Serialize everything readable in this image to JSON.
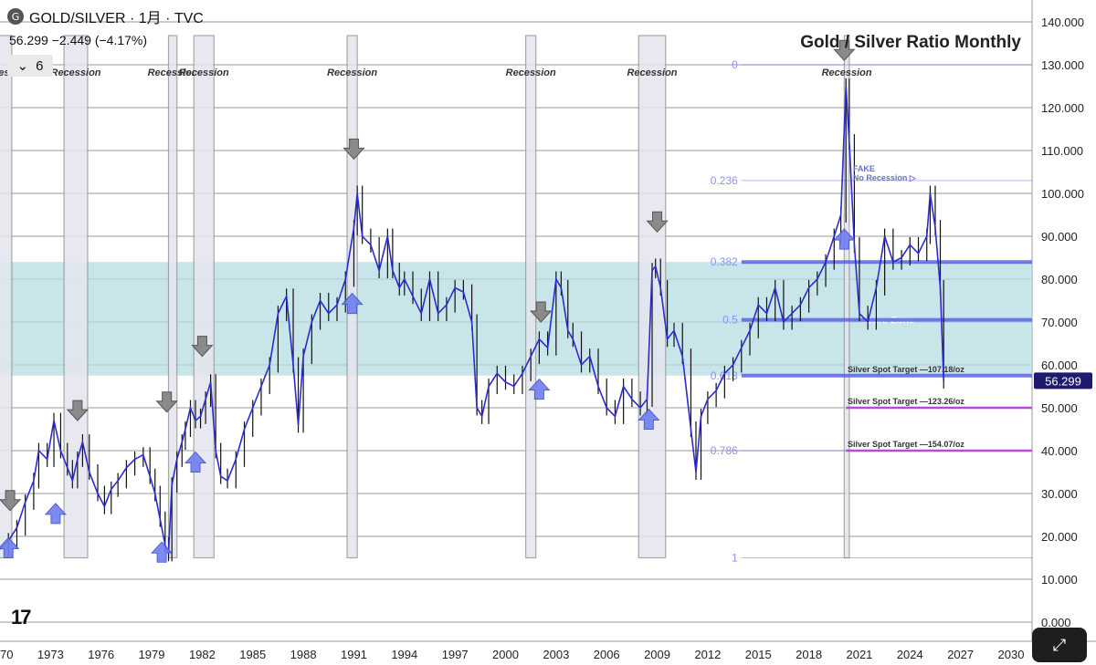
{
  "header": {
    "symbol_icon": "G",
    "title": "GOLD/SILVER · 1月 · TVC",
    "last_price": "56.299",
    "change": "−2.449 (−4.17%)",
    "layers_count": "6"
  },
  "colors": {
    "price_line": "#2b2bd6",
    "candle": "#111111",
    "band_fill": "#b6dde3",
    "recession_fill": "#e4e6ee",
    "fib_line": "#5a64e6",
    "target_line": "#b84ad8",
    "up_arrow": "#6f7ef0",
    "down_arrow": "#8a8a8a",
    "badge_bg": "#1f1a6e"
  },
  "chart_data": {
    "type": "line",
    "title": "Gold / Silver Ratio Monthly",
    "xlabel": "",
    "ylabel": "",
    "x_ticks": [
      "1970",
      "1973",
      "1976",
      "1979",
      "1982",
      "1985",
      "1988",
      "1991",
      "1994",
      "1997",
      "2000",
      "2003",
      "2006",
      "2009",
      "2012",
      "2015",
      "2018",
      "2021",
      "2024",
      "2027",
      "2030"
    ],
    "xlim": [
      1970,
      2030
    ],
    "y_ticks": [
      "0.000",
      "10.000",
      "20.000",
      "30.000",
      "40.000",
      "50.000",
      "60.000",
      "70.000",
      "80.000",
      "90.000",
      "100.000",
      "110.000",
      "120.000",
      "130.000",
      "140.000"
    ],
    "ylim": [
      0,
      140
    ],
    "current_value_label": "56.299",
    "series": [
      {
        "points": [
          [
            1970.0,
            17
          ],
          [
            1970.5,
            19
          ],
          [
            1971.0,
            22
          ],
          [
            1971.5,
            28
          ],
          [
            1972.0,
            33
          ],
          [
            1972.3,
            40
          ],
          [
            1972.8,
            38
          ],
          [
            1973.2,
            47
          ],
          [
            1973.6,
            40
          ],
          [
            1974.0,
            36
          ],
          [
            1974.3,
            33
          ],
          [
            1974.6,
            38
          ],
          [
            1974.9,
            42
          ],
          [
            1975.3,
            35
          ],
          [
            1975.8,
            30
          ],
          [
            1976.2,
            27
          ],
          [
            1976.6,
            31
          ],
          [
            1977.0,
            33
          ],
          [
            1977.5,
            36
          ],
          [
            1978.0,
            38
          ],
          [
            1978.5,
            39
          ],
          [
            1978.9,
            34
          ],
          [
            1979.2,
            30
          ],
          [
            1979.5,
            24
          ],
          [
            1979.8,
            18
          ],
          [
            1980.0,
            16
          ],
          [
            1980.2,
            32
          ],
          [
            1980.5,
            38
          ],
          [
            1980.8,
            42
          ],
          [
            1981.0,
            45
          ],
          [
            1981.3,
            50
          ],
          [
            1981.6,
            47
          ],
          [
            1981.9,
            48
          ],
          [
            1982.2,
            52
          ],
          [
            1982.5,
            56
          ],
          [
            1982.8,
            40
          ],
          [
            1983.1,
            34
          ],
          [
            1983.5,
            33
          ],
          [
            1984.0,
            38
          ],
          [
            1984.5,
            45
          ],
          [
            1985.0,
            50
          ],
          [
            1985.5,
            55
          ],
          [
            1986.0,
            60
          ],
          [
            1986.5,
            72
          ],
          [
            1987.0,
            76
          ],
          [
            1987.4,
            60
          ],
          [
            1987.7,
            46
          ],
          [
            1988.0,
            62
          ],
          [
            1988.5,
            70
          ],
          [
            1989.0,
            75
          ],
          [
            1989.5,
            72
          ],
          [
            1990.0,
            74
          ],
          [
            1990.5,
            80
          ],
          [
            1991.0,
            92
          ],
          [
            1991.2,
            100
          ],
          [
            1991.5,
            90
          ],
          [
            1992.0,
            88
          ],
          [
            1992.5,
            82
          ],
          [
            1993.0,
            90
          ],
          [
            1993.3,
            82
          ],
          [
            1993.7,
            78
          ],
          [
            1994.0,
            80
          ],
          [
            1994.5,
            76
          ],
          [
            1995.0,
            72
          ],
          [
            1995.5,
            80
          ],
          [
            1996.0,
            72
          ],
          [
            1996.5,
            74
          ],
          [
            1997.0,
            78
          ],
          [
            1997.5,
            77
          ],
          [
            1998.0,
            70
          ],
          [
            1998.3,
            50
          ],
          [
            1998.6,
            48
          ],
          [
            1999.0,
            55
          ],
          [
            1999.5,
            58
          ],
          [
            2000.0,
            56
          ],
          [
            2000.5,
            55
          ],
          [
            2001.0,
            58
          ],
          [
            2001.5,
            62
          ],
          [
            2002.0,
            66
          ],
          [
            2002.5,
            64
          ],
          [
            2003.0,
            80
          ],
          [
            2003.3,
            78
          ],
          [
            2003.7,
            68
          ],
          [
            2004.0,
            66
          ],
          [
            2004.5,
            60
          ],
          [
            2005.0,
            62
          ],
          [
            2005.5,
            55
          ],
          [
            2006.0,
            50
          ],
          [
            2006.5,
            48
          ],
          [
            2007.0,
            55
          ],
          [
            2007.5,
            52
          ],
          [
            2008.0,
            50
          ],
          [
            2008.4,
            52
          ],
          [
            2008.7,
            82
          ],
          [
            2008.9,
            83
          ],
          [
            2009.2,
            78
          ],
          [
            2009.6,
            66
          ],
          [
            2010.0,
            68
          ],
          [
            2010.5,
            62
          ],
          [
            2011.0,
            45
          ],
          [
            2011.3,
            35
          ],
          [
            2011.6,
            48
          ],
          [
            2012.0,
            52
          ],
          [
            2012.5,
            54
          ],
          [
            2013.0,
            58
          ],
          [
            2013.5,
            60
          ],
          [
            2014.0,
            64
          ],
          [
            2014.5,
            68
          ],
          [
            2015.0,
            74
          ],
          [
            2015.5,
            72
          ],
          [
            2016.0,
            78
          ],
          [
            2016.5,
            70
          ],
          [
            2017.0,
            72
          ],
          [
            2017.5,
            74
          ],
          [
            2018.0,
            78
          ],
          [
            2018.5,
            80
          ],
          [
            2019.0,
            84
          ],
          [
            2019.5,
            90
          ],
          [
            2019.9,
            95
          ],
          [
            2020.2,
            125
          ],
          [
            2020.4,
            112
          ],
          [
            2020.7,
            88
          ],
          [
            2021.0,
            72
          ],
          [
            2021.5,
            70
          ],
          [
            2022.0,
            78
          ],
          [
            2022.5,
            90
          ],
          [
            2023.0,
            84
          ],
          [
            2023.5,
            85
          ],
          [
            2024.0,
            88
          ],
          [
            2024.5,
            86
          ],
          [
            2025.0,
            90
          ],
          [
            2025.2,
            100
          ],
          [
            2025.5,
            92
          ],
          [
            2025.8,
            78
          ],
          [
            2026.0,
            56.299
          ]
        ]
      }
    ],
    "recession_label": "Recession",
    "recessions": [
      {
        "start": 1969.9,
        "end": 1970.7
      },
      {
        "start": 1973.8,
        "end": 1975.2
      },
      {
        "start": 1980.0,
        "end": 1980.5
      },
      {
        "start": 1981.5,
        "end": 1982.7
      },
      {
        "start": 1990.6,
        "end": 1991.2
      },
      {
        "start": 2001.2,
        "end": 2001.8
      },
      {
        "start": 2007.9,
        "end": 2009.5
      },
      {
        "start": 2020.1,
        "end": 2020.4
      }
    ],
    "recession_band_range": [
      15,
      130
    ],
    "core_zone": {
      "label": "Core Zone",
      "y_low": 57.5,
      "y_high": 84
    },
    "fib_levels": [
      {
        "label": "0",
        "value": 130,
        "x_start": 2014.0,
        "strong": false
      },
      {
        "label": "0.236",
        "value": 103,
        "x_start": 2014.0,
        "strong": false
      },
      {
        "label": "0.382",
        "value": 84,
        "x_start": 2014.0,
        "strong": true
      },
      {
        "label": "0.5",
        "value": 70.5,
        "x_start": 2014.0,
        "strong": true
      },
      {
        "label": "0.618",
        "value": 57.5,
        "x_start": 2014.0,
        "strong": true
      },
      {
        "label": "0.786",
        "value": 40,
        "x_start": 2014.0,
        "strong": false
      },
      {
        "label": "1",
        "value": 15,
        "x_start": 2014.0,
        "strong": false
      }
    ],
    "targets": [
      {
        "label": "Silver Spot Target  —107.18/oz",
        "value": 57.5,
        "color": "#5a64e6"
      },
      {
        "label": "Silver Spot Target  —123.26/oz",
        "value": 50,
        "color": "#b84ad8"
      },
      {
        "label": "Silver Spot Target  —154.07/oz",
        "value": 40,
        "color": "#b84ad8"
      }
    ],
    "fake_label": [
      "FAKE",
      "No Recession ▷"
    ],
    "fake_point": {
      "x": 2023.6,
      "y": 103
    },
    "down_arrows": [
      [
        1970.6,
        26
      ],
      [
        1974.6,
        47
      ],
      [
        1979.9,
        49
      ],
      [
        1982.0,
        62
      ],
      [
        1991.0,
        108
      ],
      [
        2002.1,
        70
      ],
      [
        2009.0,
        91
      ],
      [
        2020.1,
        131
      ]
    ],
    "up_arrows": [
      [
        1970.5,
        15
      ],
      [
        1973.3,
        23
      ],
      [
        1979.6,
        14
      ],
      [
        1981.6,
        35
      ],
      [
        1990.9,
        72
      ],
      [
        2002.0,
        52
      ],
      [
        2008.5,
        45
      ],
      [
        2020.1,
        87
      ]
    ]
  }
}
